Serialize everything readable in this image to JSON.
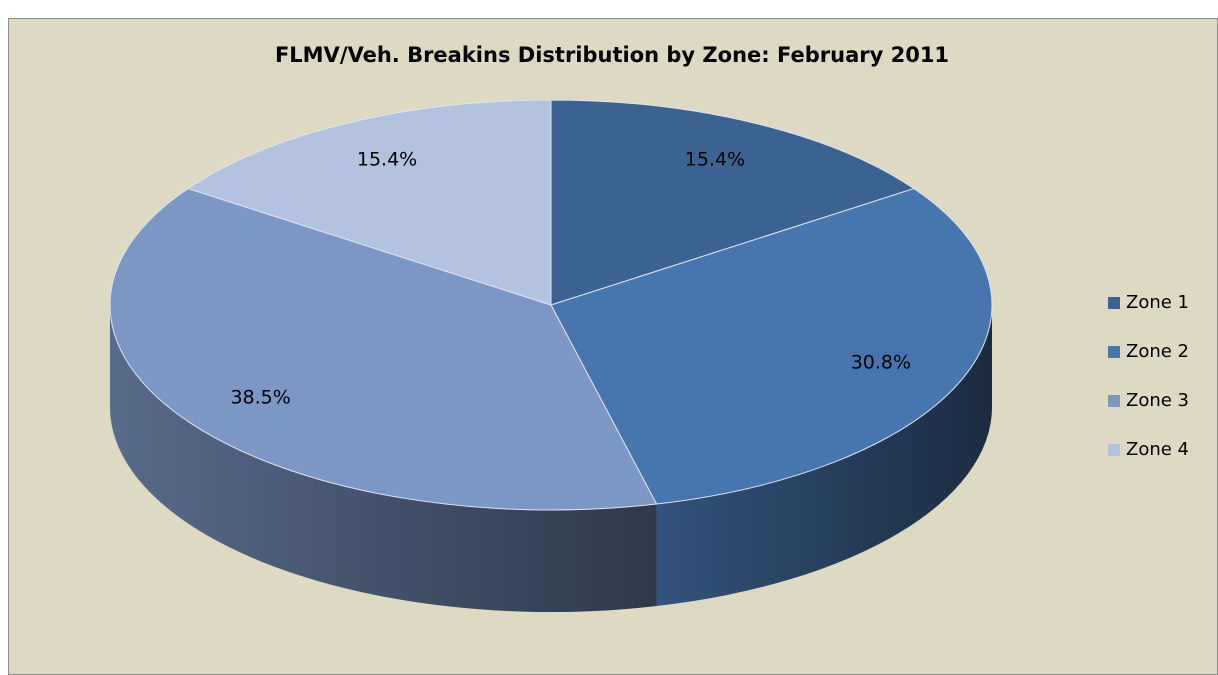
{
  "chart_data": {
    "type": "pie",
    "title": "FLMV/Veh. Breakins Distribution by Zone: February 2011",
    "categories": [
      "Zone 1",
      "Zone 2",
      "Zone 3",
      "Zone 4"
    ],
    "values": [
      15.4,
      30.8,
      38.5,
      15.4
    ],
    "value_labels": [
      "15.4%",
      "30.8%",
      "38.5%",
      "15.4%"
    ],
    "colors": [
      "#3b6391",
      "#4775ad",
      "#7b97c4",
      "#b3c2de"
    ],
    "legend": "right"
  }
}
